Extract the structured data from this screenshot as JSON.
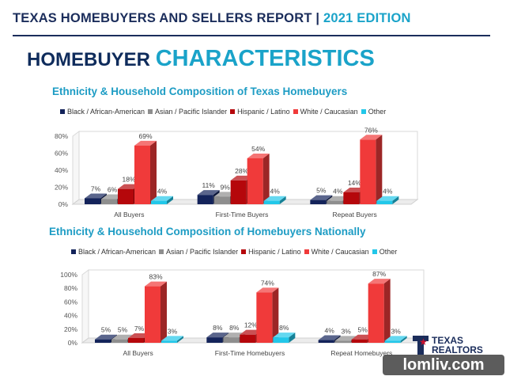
{
  "header": {
    "title": "TEXAS HOMEBUYERS AND SELLERS REPORT | ",
    "edition": "2021 EDITION"
  },
  "section": {
    "word1": "HOMEBUYER ",
    "word2": "CHARACTERISTICS"
  },
  "colors": {
    "Black / African-American": "#13235a",
    "Asian / Pacific Islander": "#8e8e8e",
    "Hispanic / Latino": "#b5070b",
    "White / Caucasian": "#f03a3a",
    "Other": "#22c7e9"
  },
  "chart_data": [
    {
      "type": "bar",
      "title": "Ethnicity & Household Composition of Texas Homebuyers",
      "categories": [
        "All Buyers",
        "First-Time Buyers",
        "Repeat Buyers"
      ],
      "series": [
        {
          "name": "Black / African-American",
          "legend_label": "Black / African-American",
          "values": [
            7,
            11,
            5
          ]
        },
        {
          "name": "Asian / Pacific Islander",
          "legend_label": "Asian /  Pacific Islander",
          "values": [
            6,
            9,
            4
          ]
        },
        {
          "name": "Hispanic / Latino",
          "legend_label": "Hispanic / Latino",
          "values": [
            18,
            28,
            14
          ]
        },
        {
          "name": "White / Caucasian",
          "legend_label": "White / Caucasian",
          "values": [
            69,
            54,
            76
          ]
        },
        {
          "name": "Other",
          "legend_label": "Other",
          "values": [
            4,
            4,
            4
          ]
        }
      ],
      "yticks": [
        "0%",
        "20%",
        "40%",
        "60%",
        "80%"
      ],
      "ylim": [
        0,
        80
      ],
      "legend": "top",
      "grid": false
    },
    {
      "type": "bar",
      "title": "Ethnicity & Household Composition of Homebuyers Nationally",
      "categories": [
        "All Buyers",
        "First-Time Homebuyers",
        "Repeat Homebuyers"
      ],
      "series": [
        {
          "name": "Black / African-American",
          "legend_label": "Black / African-American",
          "values": [
            5,
            8,
            4
          ]
        },
        {
          "name": "Asian / Pacific Islander",
          "legend_label": "Asian /  Pacific Islander",
          "values": [
            5,
            8,
            3
          ]
        },
        {
          "name": "Hispanic / Latino",
          "legend_label": "Hispanic / Latino",
          "values": [
            7,
            12,
            5
          ]
        },
        {
          "name": "White / Caucasian",
          "legend_label": "White / Caucasian",
          "values": [
            83,
            74,
            87
          ]
        },
        {
          "name": "Other",
          "legend_label": "Other",
          "values": [
            3,
            8,
            3
          ]
        }
      ],
      "yticks": [
        "0%",
        "20%",
        "40%",
        "60%",
        "80%",
        "100%"
      ],
      "ylim": [
        0,
        100
      ],
      "legend": "top",
      "grid": false
    }
  ],
  "logo": {
    "line1": "TEXAS",
    "line2": "REALTORS"
  },
  "watermark": "lomliv.com"
}
